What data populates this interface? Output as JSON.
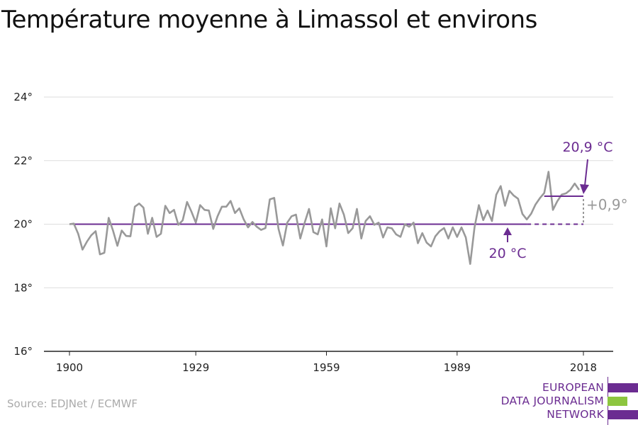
{
  "header": {
    "title": "Température moyenne à Limassol et environs"
  },
  "footer": {
    "source": "Source: EDJNet / ECMWF"
  },
  "logo": {
    "lines": [
      "EUROPEAN",
      "DATA JOURNALISM",
      "NETWORK"
    ],
    "purple": "#6b2c91",
    "green": "#8dc63f"
  },
  "chart_data": {
    "type": "line",
    "title": "Température moyenne à Limassol et environs",
    "xlabel": "",
    "ylabel": "",
    "x_ticks": [
      "1900",
      "1929",
      "1959",
      "1989",
      "2018"
    ],
    "x_tick_values": [
      1900,
      1929,
      1959,
      1989,
      2018
    ],
    "y_ticks": [
      "16°",
      "18°",
      "20°",
      "22°",
      "24°"
    ],
    "y_tick_values": [
      16,
      18,
      20,
      22,
      24
    ],
    "xlim": [
      1900,
      2018
    ],
    "ylim": [
      16,
      24
    ],
    "grid": true,
    "series": [
      {
        "color": "#999999",
        "x": [
          1900,
          1901,
          1902,
          1903,
          1904,
          1905,
          1906,
          1907,
          1908,
          1909,
          1910,
          1911,
          1912,
          1913,
          1914,
          1915,
          1916,
          1917,
          1918,
          1919,
          1920,
          1921,
          1922,
          1923,
          1924,
          1925,
          1926,
          1927,
          1928,
          1929,
          1930,
          1931,
          1932,
          1933,
          1934,
          1935,
          1936,
          1937,
          1938,
          1939,
          1940,
          1941,
          1942,
          1943,
          1944,
          1945,
          1946,
          1947,
          1948,
          1949,
          1950,
          1951,
          1952,
          1953,
          1954,
          1955,
          1956,
          1957,
          1958,
          1959,
          1960,
          1961,
          1962,
          1963,
          1964,
          1965,
          1966,
          1967,
          1968,
          1969,
          1970,
          1971,
          1972,
          1973,
          1974,
          1975,
          1976,
          1977,
          1978,
          1979,
          1980,
          1981,
          1982,
          1983,
          1984,
          1985,
          1986,
          1987,
          1988,
          1989,
          1990,
          1991,
          1992,
          1993,
          1994,
          1995,
          1996,
          1997,
          1998,
          1999,
          2000,
          2001,
          2002,
          2003,
          2004,
          2005,
          2006,
          2007,
          2008,
          2009,
          2010,
          2011,
          2012,
          2013,
          2014,
          2015,
          2016,
          2017
        ],
        "values": [
          20.0,
          20.02,
          19.7,
          19.2,
          19.45,
          19.65,
          19.78,
          19.05,
          19.1,
          20.2,
          19.8,
          19.32,
          19.8,
          19.63,
          19.62,
          20.55,
          20.65,
          20.52,
          19.7,
          20.2,
          19.6,
          19.7,
          20.58,
          20.35,
          20.45,
          19.98,
          20.12,
          20.7,
          20.4,
          20.05,
          20.6,
          20.45,
          20.43,
          19.85,
          20.25,
          20.55,
          20.55,
          20.73,
          20.35,
          20.5,
          20.15,
          19.9,
          20.07,
          19.92,
          19.82,
          19.88,
          20.78,
          20.83,
          19.85,
          19.33,
          20.05,
          20.25,
          20.3,
          19.55,
          20.05,
          20.48,
          19.75,
          19.68,
          20.15,
          19.3,
          20.5,
          19.87,
          20.65,
          20.3,
          19.72,
          19.87,
          20.48,
          19.55,
          20.1,
          20.25,
          19.98,
          20.05,
          19.58,
          19.9,
          19.87,
          19.68,
          19.6,
          20.0,
          19.92,
          20.05,
          19.4,
          19.72,
          19.42,
          19.3,
          19.62,
          19.78,
          19.88,
          19.55,
          19.9,
          19.6,
          19.9,
          19.58,
          18.75,
          19.9,
          20.6,
          20.13,
          20.43,
          20.1,
          20.93,
          21.2,
          20.58,
          21.05,
          20.9,
          20.8,
          20.32,
          20.15,
          20.33,
          20.62,
          20.82,
          20.98,
          21.65,
          20.45,
          20.72,
          20.93,
          20.97,
          21.08,
          21.28,
          21.08
        ]
      }
    ],
    "reference_lines": [
      {
        "label": "20 °C",
        "value": 20.0,
        "from": 1900,
        "to": 2018,
        "color": "#6b2c91"
      },
      {
        "label": "20,9 °C",
        "value": 20.88,
        "from": 2009,
        "to": 2018,
        "color": "#6b2c91"
      }
    ],
    "annotations": {
      "difference": "+0,9°"
    }
  }
}
